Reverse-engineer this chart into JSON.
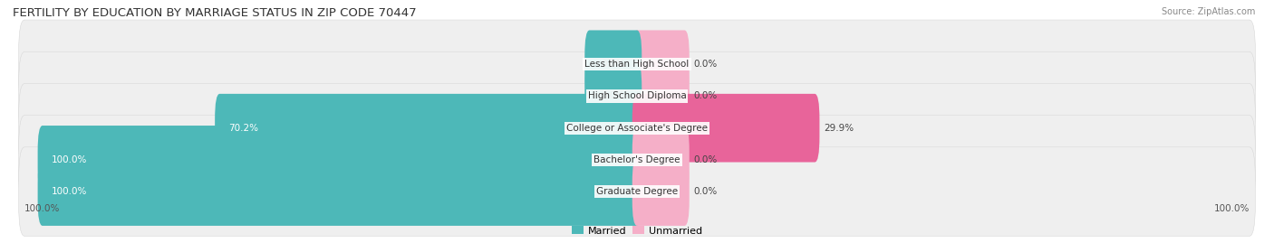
{
  "title": "FERTILITY BY EDUCATION BY MARRIAGE STATUS IN ZIP CODE 70447",
  "source": "Source: ZipAtlas.com",
  "categories": [
    "Less than High School",
    "High School Diploma",
    "College or Associate's Degree",
    "Bachelor's Degree",
    "Graduate Degree"
  ],
  "married_values": [
    0.0,
    0.0,
    70.2,
    100.0,
    100.0
  ],
  "unmarried_values": [
    0.0,
    0.0,
    29.9,
    0.0,
    0.0
  ],
  "married_color": "#4db8b8",
  "unmarried_color_soft": "#f5afc8",
  "unmarried_color_bright": "#e8649a",
  "title_fontsize": 9.5,
  "label_fontsize": 7.5,
  "value_fontsize": 7.5,
  "source_fontsize": 7,
  "legend_fontsize": 8,
  "legend_married": "Married",
  "legend_unmarried": "Unmarried",
  "bottom_left_label": "100.0%",
  "bottom_right_label": "100.0%",
  "xlim_left": -105,
  "xlim_right": 105,
  "row_bg_color": "#efefef",
  "row_edge_color": "#d8d8d8"
}
